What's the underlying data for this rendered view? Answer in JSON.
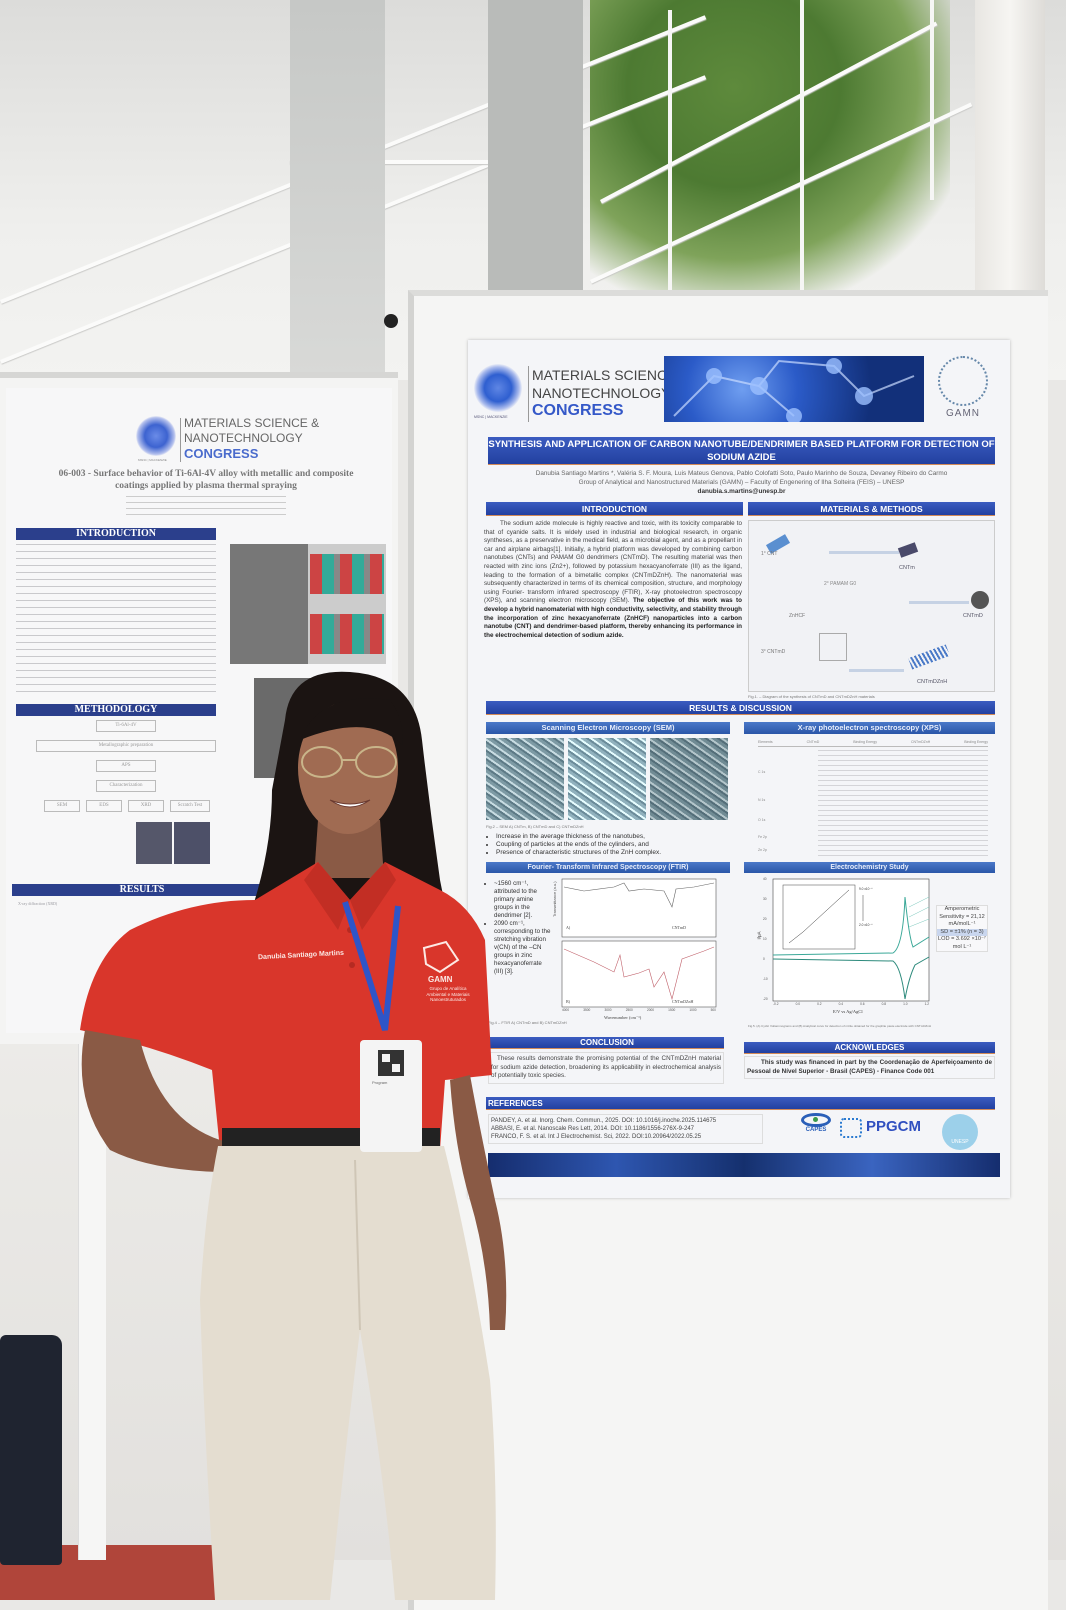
{
  "scene": {
    "description_colors": {
      "shirt": "#d9362b",
      "poster_bar": "#2b4aa8",
      "pants": "#e4ddd0",
      "wall": "#ecebe8",
      "floor": "#b0453a"
    }
  },
  "left_poster": {
    "congress_logo": {
      "line1": "MATERIALS SCIENCE &",
      "line2": "NANOTECHNOLOGY",
      "line3": "CONGRESS",
      "sublabel": "MSNC | MACKENZIE"
    },
    "title": "06-003 - Surface behavior of Ti-6Al-4V alloy with metallic and composite coatings applied by plasma thermal spraying",
    "sections": {
      "introduction": "INTRODUCTION",
      "methodology": "METHODOLOGY",
      "results": "RESULTS"
    },
    "methodology_boxes": [
      "Ti-6Al-4V",
      "Metallographic preparation",
      "APS",
      "Characterization",
      "SEM",
      "EDS",
      "XRD",
      "Scratch Test"
    ],
    "results_item": "X-ray diffraction (XRD)"
  },
  "right_poster": {
    "congress_logo": {
      "line1": "MATERIALS SCIENCE &",
      "line2": "NANOTECHNOLOGY",
      "line3": "CONGRESS",
      "sublabel": "MSNC | MACKENZIE"
    },
    "group_logo": "GAMN",
    "title": "SYNTHESIS AND APPLICATION OF CARBON NANOTUBE/DENDRIMER BASED PLATFORM FOR DETECTION OF SODIUM AZIDE",
    "authors": "Danubia Santiago Martins *, Valéria S. F. Moura, Luis Mateus Genova, Pablo Colofatti Soto, Paulo Marinho de Souza, Devaney Ribeiro do Carmo",
    "affiliation": "Group of Analytical and Nanostructured Materials (GAMN) – Faculty of Engenering of Ilha Solteira (FEIS) – UNESP",
    "email": "danubia.s.martins@unesp.br",
    "introduction": {
      "heading": "INTRODUCTION",
      "text": "The sodium azide molecule is highly reactive and toxic, with its toxicity comparable to that of cyanide salts. It is widely used in industrial and biological research, in organic syntheses, as a preservative in the medical field, as a microbial agent, and as a propellant in car and airplane airbags[1]. Initially, a hybrid platform was developed by combining carbon nanotubes (CNTs) and PAMAM G0 dendrimers (CNTmD). The resulting material was then reacted with zinc ions (Zn2+), followed by potassium hexacyanoferrate (III) as the ligand, leading to the formation of a bimetallic complex (CNTmDZnH). The nanomaterial was subsequently characterized in terms of its chemical composition, structure, and morphology using Fourier- transform infrared spectroscopy (FTIR), X-ray photoelectron spectroscopy (XPS), and scanning electron microscopy (SEM). ",
      "objective": "The objective of this work was to develop a hybrid nanomaterial with high conductivity, selectivity, and stability through the incorporation of zinc hexacyanoferrate (ZnHCF) nanoparticles into a carbon nanotube (CNT) and dendrimer-based platform, thereby enhancing its performance in the electrochemical detection of sodium azide."
    },
    "methods": {
      "heading": "MATERIALS & METHODS",
      "labels": [
        "1° CNT",
        "CNTm",
        "2° PAMAM G0",
        "CNTmD",
        "ZnHCF",
        "3° CNTmD",
        "CNTmDZnH"
      ],
      "caption": "Fig.1. – Diagram of the synthesis of CNTmD and CNTmDZnH materials"
    },
    "results": {
      "heading": "RESULTS & DISCUSSION",
      "sem": {
        "heading": "Scanning Electron Microscopy (SEM)",
        "caption": "Fig.2 – SEM A) CNTm, B) CNTmD and C) CNTmDZnH",
        "bullets": [
          "Increase in the average thickness of the nanotubes,",
          "Coupling of particles at the ends of the cylinders, and",
          "Presence of characteristic structures of the ZnH complex."
        ]
      },
      "xps": {
        "heading": "X-ray photoelectron spectroscopy (XPS)",
        "columns": [
          "Elements",
          "CNTmD",
          "Binding Energy",
          "CNTmDZnH",
          "Binding Energy"
        ],
        "rows": [
          "C 1s",
          "N 1s",
          "O 1s",
          "Fe 2p",
          "Zn 2p"
        ]
      },
      "ftir": {
        "heading": "Fourier- Transform Infrared Spectroscopy (FTIR)",
        "bullets": [
          "~1560 cm⁻¹, attributed to the primary amine groups in the dendrimer [2].",
          "2090 cm⁻¹, corresponding to the stretching vibration v(CN) of the –CN groups in zinc hexacyanoferrate (III) [3]."
        ],
        "ylabel": "Transmittance (a.u.)",
        "xlabel": "Wavenumber (cm⁻¹)",
        "xticks": [
          "4000",
          "3500",
          "3000",
          "2500",
          "2000",
          "1500",
          "1000",
          "500"
        ],
        "legend_a": "CNTmD",
        "legend_b": "CNTmDZnH",
        "panel_a": "A)",
        "panel_b": "B)",
        "caption": "Fig.4 – FTIR A) CNTmD and B) CNTmDZnH"
      },
      "electrochemistry": {
        "heading": "Electrochemistry Study",
        "ylabel": "I/μA",
        "xlabel": "E/V vs Ag/AgCl",
        "xticks": [
          "-0.2",
          "0.0",
          "0.2",
          "0.4",
          "0.6",
          "0.8",
          "1.0",
          "1.2"
        ],
        "yticks": [
          "40",
          "30",
          "20",
          "10",
          "0",
          "-10",
          "-20"
        ],
        "inset_hi": "9.0 x10⁻⁴",
        "inset_lo": "2.0 x10⁻⁴",
        "sensitivity": "Amperometric Sensitivity = 21,12 mA/molL⁻¹",
        "sd": "SD = ±1% (n = 3)",
        "lod": "LOD = 3.692 ×10⁻⁷ mol L⁻¹",
        "caption": "Fig.5. (A) Cyclic Voltammograms and (B) Analytical curve for detection of nitrite obtained for the graphite paste electrode with CNTmDZnH"
      }
    },
    "conclusion": {
      "heading": "CONCLUSION",
      "text": "These results demonstrate the promising potential of the CNTmDZnH material for sodium azide detection, broadening its applicability in electrochemical analysis of potentially toxic species."
    },
    "acknowledges": {
      "heading": "ACKNOWLEDGES",
      "text": "This study was financed in part by the Coordenação de Aperfeiçoamento de Pessoal de Nível Superior - Brasil (CAPES) - Finance Code 001"
    },
    "references": {
      "heading": "REFERENCES",
      "items": [
        "PANDEY, A. et al. Inorg. Chem. Commun., 2025. DOI: 10.1016/j.inoche.2025.114675",
        "ABBASI, E. et al. Nanoscale Res Lett, 2014. DOI: 10.1186/1556-276X-9-247",
        "FRANCO, F. S. et al. Int J Electrochemist. Sci, 2022. DOI:10.20964/2022.05.25"
      ]
    },
    "sponsor_logos": [
      "CAPES",
      "PPGCM",
      "UNESP"
    ]
  },
  "person": {
    "shirt_name": "Danubia Santiago Martins",
    "shirt_logo": "GAMN",
    "shirt_logo_sub": "Grupo de Analítica Ambiental e Materiais Nanoestruturados",
    "badge_label": "Program"
  }
}
